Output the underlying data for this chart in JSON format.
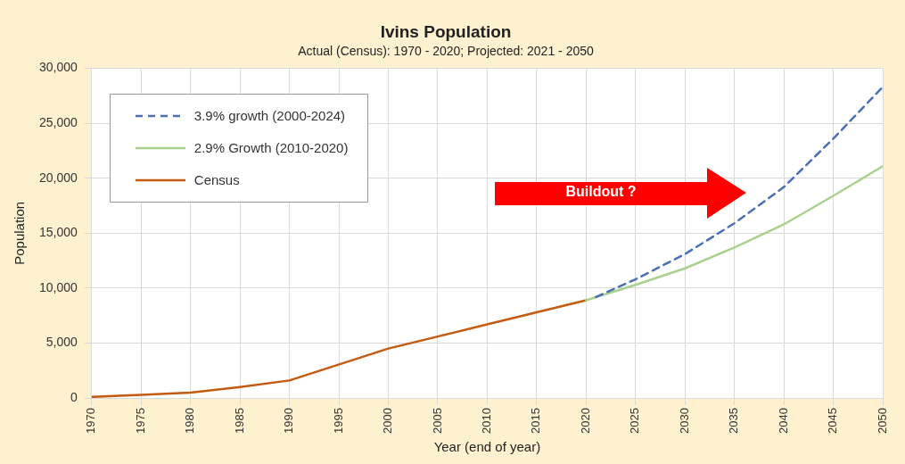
{
  "chart_data": {
    "type": "line",
    "title": "Ivins Population",
    "subtitle": "Actual (Census): 1970 - 2020; Projected: 2021 - 2050",
    "xlabel": "Year (end of year)",
    "ylabel": "Population",
    "series": [
      {
        "name": "3.9% growth (2000-2024)",
        "color": "#4a6fb5",
        "line_style": "dashed",
        "x": [
          2021,
          2025,
          2030,
          2035,
          2040,
          2045,
          2050
        ],
        "values": [
          9200,
          10800,
          13100,
          15900,
          19200,
          23600,
          28300
        ]
      },
      {
        "name": "2.9% Growth (2010-2020)",
        "color": "#a9d18e",
        "line_style": "solid",
        "x": [
          2020,
          2025,
          2030,
          2035,
          2040,
          2045,
          2050
        ],
        "values": [
          8900,
          10300,
          11800,
          13700,
          15800,
          18400,
          21100
        ]
      },
      {
        "name": "Census",
        "color": "#c55a11",
        "line_style": "solid",
        "x": [
          1970,
          1975,
          1980,
          1985,
          1990,
          2000,
          2010,
          2020
        ],
        "values": [
          100,
          300,
          500,
          1000,
          1600,
          4500,
          6700,
          8900
        ]
      }
    ],
    "xlim": [
      1970,
      2050
    ],
    "xticks": [
      1970,
      1975,
      1980,
      1985,
      1990,
      1995,
      2000,
      2005,
      2010,
      2015,
      2020,
      2025,
      2030,
      2035,
      2040,
      2045,
      2050
    ],
    "ylim": [
      0,
      30000
    ],
    "yticks": [
      0,
      {
        "value": 5000,
        "label": "5,000"
      },
      {
        "value": 10000,
        "label": "10,000"
      },
      {
        "value": 15000,
        "label": "15,000"
      },
      {
        "value": 20000,
        "label": "20,000"
      },
      {
        "value": 25000,
        "label": "25,000"
      },
      {
        "value": 30000,
        "label": "30,000"
      }
    ],
    "grid": true,
    "legend": "top left",
    "marker": "none",
    "annotations": [
      "Buildout ?"
    ]
  }
}
